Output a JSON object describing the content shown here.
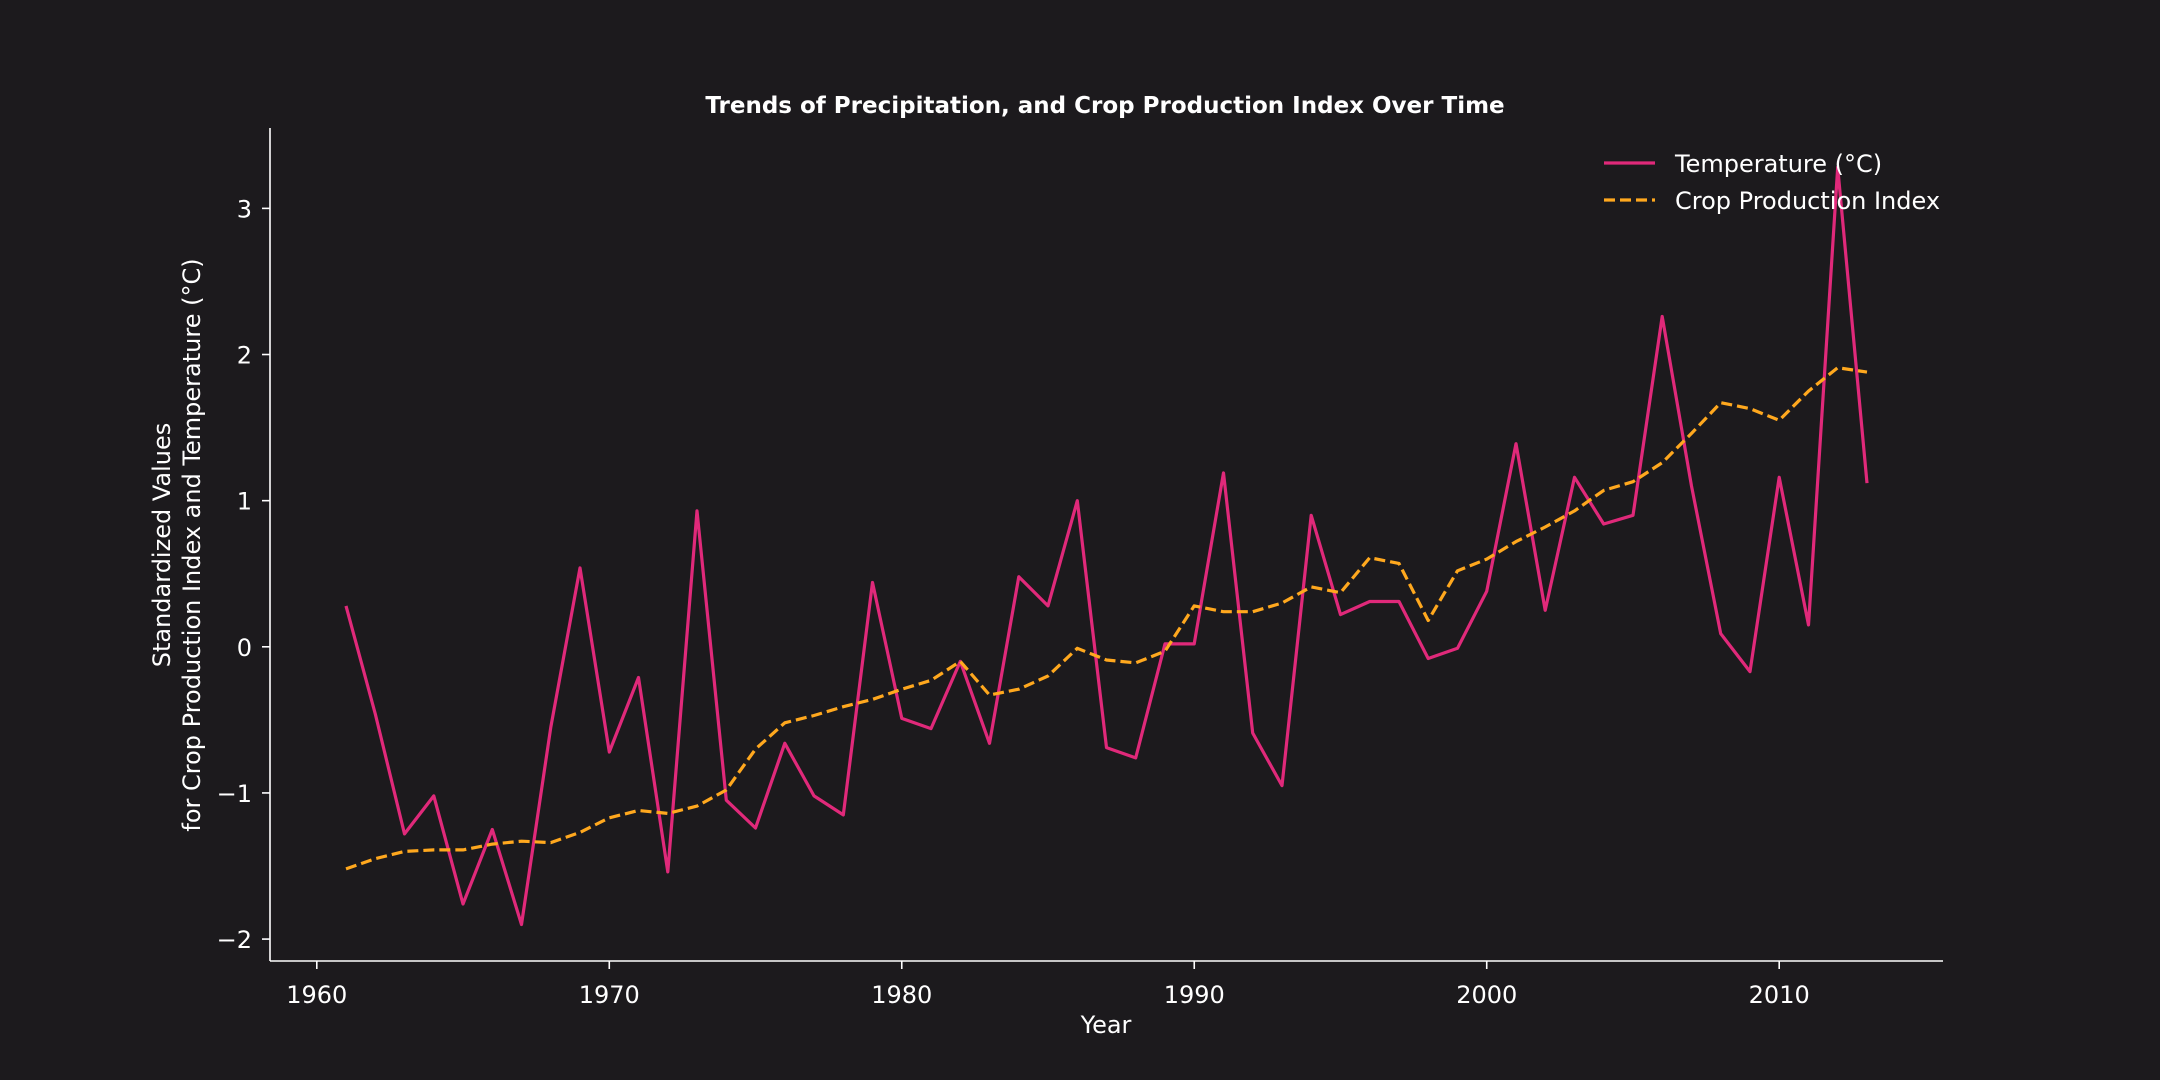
{
  "chart_data": {
    "type": "line",
    "title": "Trends of Precipitation, and Crop Production Index Over Time",
    "xlabel": "Year",
    "ylabel_lines": [
      "Standardized Values",
      "for Crop Production Index and Temperature (°C)"
    ],
    "xlim": [
      1958.4,
      2015.6
    ],
    "ylim": [
      -2.15,
      3.55
    ],
    "xticks": [
      1960,
      1970,
      1980,
      1990,
      2000,
      2010
    ],
    "yticks": [
      -2,
      -1,
      0,
      1,
      2,
      3
    ],
    "ytick_labels": [
      "−2",
      "−1",
      "0",
      "1",
      "2",
      "3"
    ],
    "grid": false,
    "legend_position": "top-right",
    "x": [
      1961,
      1962,
      1963,
      1964,
      1965,
      1966,
      1967,
      1968,
      1969,
      1970,
      1971,
      1972,
      1973,
      1974,
      1975,
      1976,
      1977,
      1978,
      1979,
      1980,
      1981,
      1982,
      1983,
      1984,
      1985,
      1986,
      1987,
      1988,
      1989,
      1990,
      1991,
      1992,
      1993,
      1994,
      1995,
      1996,
      1997,
      1998,
      1999,
      2000,
      2001,
      2002,
      2003,
      2004,
      2005,
      2006,
      2007,
      2008,
      2009,
      2010,
      2011,
      2012,
      2013
    ],
    "series": [
      {
        "name": "Temperature (°C)",
        "color": "#e0297a",
        "dash": "solid",
        "values": [
          0.28,
          -0.46,
          -1.28,
          -1.02,
          -1.76,
          -1.25,
          -1.9,
          -0.55,
          0.54,
          -0.72,
          -0.21,
          -1.54,
          0.93,
          -1.05,
          -1.24,
          -0.66,
          -1.02,
          -1.15,
          0.44,
          -0.49,
          -0.56,
          -0.1,
          -0.66,
          0.48,
          0.28,
          1.0,
          -0.69,
          -0.76,
          0.02,
          0.02,
          1.19,
          -0.59,
          -0.95,
          0.9,
          0.22,
          0.31,
          0.31,
          -0.08,
          -0.01,
          0.38,
          1.39,
          0.25,
          1.16,
          0.84,
          0.9,
          2.26,
          1.1,
          0.09,
          -0.17,
          1.16,
          0.15,
          3.28,
          1.12
        ]
      },
      {
        "name": "Crop Production Index",
        "color": "#ffa81e",
        "dash": "dashed",
        "values": [
          -1.52,
          -1.45,
          -1.4,
          -1.39,
          -1.39,
          -1.35,
          -1.33,
          -1.34,
          -1.27,
          -1.17,
          -1.12,
          -1.14,
          -1.09,
          -0.98,
          -0.7,
          -0.52,
          -0.47,
          -0.41,
          -0.36,
          -0.29,
          -0.23,
          -0.1,
          -0.33,
          -0.29,
          -0.2,
          -0.01,
          -0.09,
          -0.11,
          -0.03,
          0.28,
          0.24,
          0.24,
          0.3,
          0.41,
          0.37,
          0.61,
          0.57,
          0.18,
          0.52,
          0.6,
          0.72,
          0.82,
          0.93,
          1.07,
          1.13,
          1.26,
          1.46,
          1.67,
          1.63,
          1.55,
          1.75,
          1.91,
          1.88
        ]
      }
    ]
  }
}
